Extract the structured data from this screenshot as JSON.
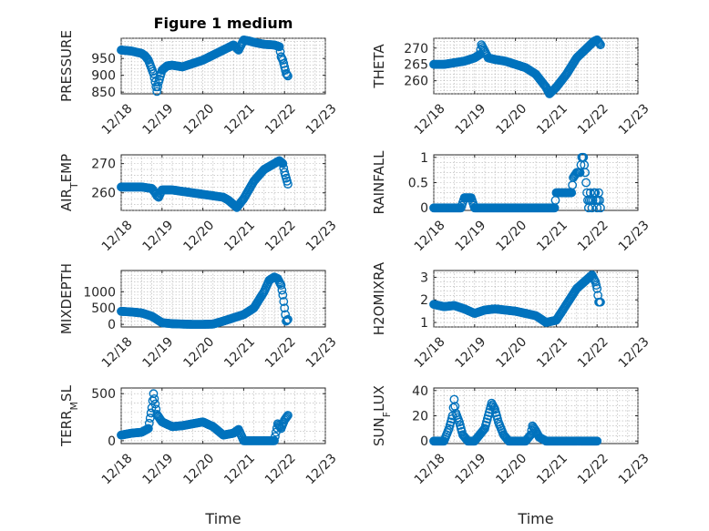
{
  "figure_title": "Figure 1 medium",
  "marker_color": "#0072bd",
  "chart_data": [
    {
      "type": "scatter",
      "ylabel": "PRESSURE",
      "title": "Figure 1 medium",
      "xlim": [
        "12/18",
        "12/23"
      ],
      "ylim": [
        845,
        1010
      ],
      "yticks": [
        850,
        900,
        950
      ],
      "xticks": [
        "12/18",
        "12/19",
        "12/20",
        "12/21",
        "12/22",
        "12/23"
      ],
      "x": [
        "12/18 00:00",
        "12/18 06:00",
        "12/18 12:00",
        "12/18 14:00",
        "12/18 16:00",
        "12/18 17:30",
        "12/18 19:00",
        "12/18 20:00",
        "12/18 21:00",
        "12/18 22:00",
        "12/19 00:00",
        "12/19 03:00",
        "12/19 06:00",
        "12/19 12:00",
        "12/19 18:00",
        "12/20 00:00",
        "12/20 06:00",
        "12/20 12:00",
        "12/20 18:00",
        "12/20 21:00",
        "12/21 00:00",
        "12/21 03:00",
        "12/21 06:00",
        "12/21 12:00",
        "12/21 18:00",
        "12/21 21:00",
        "12/21 22:00",
        "12/21 23:00",
        "12/22 00:00",
        "12/22 01:00",
        "12/22 02:00"
      ],
      "y": [
        975,
        972,
        965,
        958,
        945,
        925,
        905,
        880,
        852,
        880,
        915,
        928,
        930,
        925,
        935,
        945,
        960,
        975,
        990,
        975,
        1005,
        1002,
        998,
        992,
        990,
        985,
        955,
        945,
        925,
        905,
        898
      ]
    },
    {
      "type": "scatter",
      "ylabel": "THETA",
      "xlim": [
        "12/18",
        "12/23"
      ],
      "ylim": [
        256,
        273
      ],
      "yticks": [
        260,
        265,
        270
      ],
      "xticks": [
        "12/18",
        "12/19",
        "12/20",
        "12/21",
        "12/22",
        "12/23"
      ],
      "x": [
        "12/18 00:00",
        "12/18 06:00",
        "12/18 12:00",
        "12/18 18:00",
        "12/19 00:00",
        "12/19 03:00",
        "12/19 04:00",
        "12/19 06:00",
        "12/19 08:00",
        "12/19 12:00",
        "12/19 18:00",
        "12/20 00:00",
        "12/20 06:00",
        "12/20 12:00",
        "12/20 15:00",
        "12/20 18:00",
        "12/20 20:00",
        "12/21 00:00",
        "12/21 06:00",
        "12/21 12:00",
        "12/21 18:00",
        "12/21 22:00",
        "12/22 00:00",
        "12/22 02:00"
      ],
      "y": [
        265,
        265,
        265.5,
        266,
        267,
        268,
        271,
        269,
        267,
        266.5,
        266,
        265,
        264,
        262,
        260,
        258,
        256,
        258,
        262,
        267,
        270,
        272,
        272.5,
        271
      ]
    },
    {
      "type": "scatter",
      "ylabel": "AIR_TEMP",
      "ylabel_main": "AIR",
      "ylabel_sub": "T",
      "ylabel_rest": "EMP",
      "xlim": [
        "12/18",
        "12/23"
      ],
      "ylim": [
        254,
        273
      ],
      "yticks": [
        260,
        270
      ],
      "xticks": [
        "12/18",
        "12/19",
        "12/20",
        "12/21",
        "12/22",
        "12/23"
      ],
      "x": [
        "12/18 00:00",
        "12/18 06:00",
        "12/18 12:00",
        "12/18 18:00",
        "12/18 20:00",
        "12/18 21:00",
        "12/18 22:00",
        "12/19 00:00",
        "12/19 06:00",
        "12/19 12:00",
        "12/19 18:00",
        "12/20 00:00",
        "12/20 06:00",
        "12/20 12:00",
        "12/20 15:00",
        "12/20 18:00",
        "12/20 20:00",
        "12/21 00:00",
        "12/21 06:00",
        "12/21 12:00",
        "12/21 18:00",
        "12/21 21:00",
        "12/21 23:00",
        "12/22 00:00",
        "12/22 02:00"
      ],
      "y": [
        262,
        262,
        262,
        261.5,
        260,
        259,
        258.5,
        261,
        261,
        260.5,
        260,
        259.5,
        259,
        258.5,
        257.5,
        256,
        255,
        258,
        264,
        268,
        270,
        271,
        270,
        267,
        263
      ]
    },
    {
      "type": "scatter",
      "ylabel": "RAINFALL",
      "xlim": [
        "12/18",
        "12/23"
      ],
      "ylim": [
        -0.05,
        1.05
      ],
      "yticks": [
        0,
        0.5,
        1
      ],
      "yticklabels": [
        "0",
        "0.5",
        "1"
      ],
      "xticks": [
        "12/18",
        "12/19",
        "12/20",
        "12/21",
        "12/22",
        "12/23"
      ],
      "x": [
        "12/18 00:00",
        "12/18 06:00",
        "12/18 12:00",
        "12/18 16:00",
        "12/18 18:00",
        "12/18 20:00",
        "12/18 22:00",
        "12/19 00:00",
        "12/19 06:00",
        "12/19 12:00",
        "12/19 18:00",
        "12/20 00:00",
        "12/20 06:00",
        "12/20 12:00",
        "12/20 18:00",
        "12/20 23:00",
        "12/21 00:00",
        "12/21 03:00",
        "12/21 06:00",
        "12/21 09:00",
        "12/21 10:00",
        "12/21 12:00",
        "12/21 14:00",
        "12/21 15:00",
        "12/21 16:00",
        "12/21 17:00",
        "12/21 18:00",
        "12/21 19:00",
        "12/21 20:00",
        "12/21 21:00",
        "12/21 22:00",
        "12/21 23:00",
        "12/22 00:00",
        "12/22 01:00",
        "12/22 02:00"
      ],
      "y": [
        0,
        0,
        0,
        0,
        0.2,
        0.2,
        0.2,
        0,
        0,
        0,
        0,
        0,
        0,
        0,
        0,
        0,
        0.3,
        0.3,
        0.3,
        0.3,
        0.6,
        0.7,
        0.7,
        1,
        1,
        0.7,
        0.3,
        0,
        0.3,
        0,
        0.3,
        0.3,
        0,
        0.3,
        0
      ]
    },
    {
      "type": "scatter",
      "ylabel": "MIXDEPTH",
      "xlim": [
        "12/18",
        "12/23"
      ],
      "ylim": [
        -80,
        1650
      ],
      "yticks": [
        0,
        500,
        1000
      ],
      "xticks": [
        "12/18",
        "12/19",
        "12/20",
        "12/21",
        "12/22",
        "12/23"
      ],
      "x": [
        "12/18 00:00",
        "12/18 06:00",
        "12/18 12:00",
        "12/18 18:00",
        "12/19 00:00",
        "12/19 06:00",
        "12/19 12:00",
        "12/19 18:00",
        "12/20 00:00",
        "12/20 06:00",
        "12/20 12:00",
        "12/20 18:00",
        "12/21 00:00",
        "12/21 06:00",
        "12/21 12:00",
        "12/21 15:00",
        "12/21 18:00",
        "12/21 20:00",
        "12/21 22:00",
        "12/21 23:00",
        "12/22 00:00",
        "12/22 01:00",
        "12/22 02:00"
      ],
      "y": [
        400,
        380,
        350,
        250,
        50,
        20,
        10,
        0,
        0,
        10,
        100,
        200,
        300,
        500,
        1000,
        1350,
        1450,
        1400,
        1200,
        900,
        500,
        100,
        150
      ]
    },
    {
      "type": "scatter",
      "ylabel": "H2OMIXRA",
      "xlim": [
        "12/18",
        "12/23"
      ],
      "ylim": [
        0.8,
        3.3
      ],
      "yticks": [
        1,
        2,
        3
      ],
      "xticks": [
        "12/18",
        "12/19",
        "12/20",
        "12/21",
        "12/22",
        "12/23"
      ],
      "x": [
        "12/18 00:00",
        "12/18 06:00",
        "12/18 12:00",
        "12/18 18:00",
        "12/19 00:00",
        "12/19 06:00",
        "12/19 12:00",
        "12/19 18:00",
        "12/20 00:00",
        "12/20 06:00",
        "12/20 12:00",
        "12/20 18:00",
        "12/21 00:00",
        "12/21 06:00",
        "12/21 12:00",
        "12/21 18:00",
        "12/21 21:00",
        "12/21 23:00",
        "12/22 00:00",
        "12/22 01:00",
        "12/22 02:00"
      ],
      "y": [
        1.8,
        1.7,
        1.75,
        1.6,
        1.4,
        1.55,
        1.6,
        1.55,
        1.5,
        1.4,
        1.3,
        1.0,
        1.1,
        1.8,
        2.5,
        2.9,
        3.1,
        2.8,
        2.5,
        1.9,
        1.9
      ]
    },
    {
      "type": "scatter",
      "ylabel": "TERR_MSL",
      "ylabel_main": "TERR",
      "ylabel_sub": "M",
      "ylabel_rest": "SL",
      "xlim": [
        "12/18",
        "12/23"
      ],
      "ylim": [
        -30,
        560
      ],
      "yticks": [
        0,
        500
      ],
      "xticks": [
        "12/18",
        "12/19",
        "12/20",
        "12/21",
        "12/22",
        "12/23"
      ],
      "x": [
        "12/18 00:00",
        "12/18 06:00",
        "12/18 12:00",
        "12/18 16:00",
        "12/18 18:00",
        "12/18 19:00",
        "12/18 21:00",
        "12/19 00:00",
        "12/19 06:00",
        "12/19 12:00",
        "12/19 18:00",
        "12/20 00:00",
        "12/20 06:00",
        "12/20 12:00",
        "12/20 18:00",
        "12/20 21:00",
        "12/21 00:00",
        "12/21 06:00",
        "12/21 12:00",
        "12/21 18:00",
        "12/21 20:00",
        "12/21 22:00",
        "12/22 00:00",
        "12/22 02:00"
      ],
      "y": [
        60,
        80,
        90,
        130,
        350,
        500,
        280,
        200,
        150,
        160,
        180,
        200,
        150,
        60,
        80,
        120,
        0,
        0,
        0,
        0,
        180,
        130,
        220,
        270
      ]
    },
    {
      "type": "scatter",
      "ylabel": "SUN_FLUX",
      "ylabel_main": "SUN",
      "ylabel_sub": "F",
      "ylabel_rest": "LUX",
      "xlim": [
        "12/18",
        "12/23"
      ],
      "ylim": [
        -2,
        42
      ],
      "yticks": [
        0,
        20,
        40
      ],
      "xticks": [
        "12/18",
        "12/19",
        "12/20",
        "12/21",
        "12/22",
        "12/23"
      ],
      "x": [
        "12/18 00:00",
        "12/18 06:00",
        "12/18 09:00",
        "12/18 11:00",
        "12/18 12:00",
        "12/18 13:00",
        "12/18 15:00",
        "12/18 17:00",
        "12/18 20:00",
        "12/19 00:00",
        "12/19 06:00",
        "12/19 08:00",
        "12/19 10:00",
        "12/19 12:00",
        "12/19 14:00",
        "12/19 17:00",
        "12/19 20:00",
        "12/20 00:00",
        "12/20 06:00",
        "12/20 09:00",
        "12/20 10:00",
        "12/20 12:00",
        "12/20 14:00",
        "12/20 18:00",
        "12/21 00:00",
        "12/21 06:00",
        "12/21 12:00",
        "12/21 18:00",
        "12/22 00:00"
      ],
      "y": [
        0,
        0,
        10,
        20,
        33,
        22,
        15,
        5,
        0,
        0,
        10,
        20,
        30,
        25,
        15,
        5,
        0,
        0,
        0,
        5,
        12,
        8,
        3,
        0,
        0,
        0,
        0,
        0,
        0
      ]
    }
  ],
  "bottom_xlabels": [
    "Time",
    "Time"
  ]
}
